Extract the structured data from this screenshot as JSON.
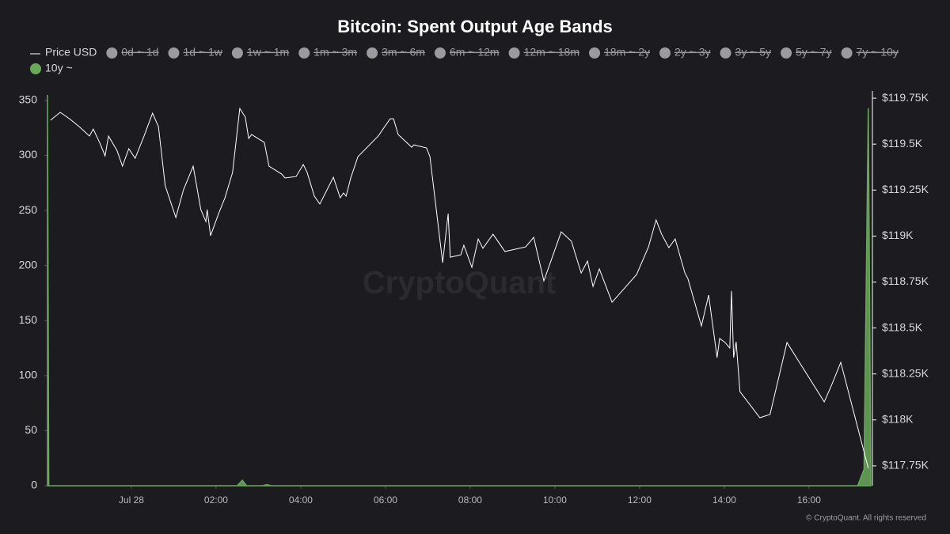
{
  "chart_data": {
    "type": "line_area",
    "title": "Bitcoin: Spent Output Age Bands",
    "watermark": "CryptoQuant",
    "footer": "© CryptoQuant. All rights reserved",
    "hidden_series": [
      "0d ~ 1d",
      "1d ~ 1w",
      "1w ~ 1m",
      "1m ~ 3m",
      "3m ~ 6m",
      "6m ~ 12m",
      "12m ~ 18m",
      "18m ~ 2y",
      "2y ~ 3y",
      "3y ~ 5y",
      "5y ~ 7y",
      "7y ~ 10y"
    ],
    "hidden_color": "#9a9aa0",
    "xlim": [
      -1.98,
      17.46
    ],
    "xticks": [
      {
        "value": 0,
        "label": "Jul 28"
      },
      {
        "value": 2,
        "label": "02:00"
      },
      {
        "value": 4,
        "label": "04:00"
      },
      {
        "value": 6,
        "label": "06:00"
      },
      {
        "value": 8,
        "label": "08:00"
      },
      {
        "value": 10,
        "label": "10:00"
      },
      {
        "value": 12,
        "label": "12:00"
      },
      {
        "value": 14,
        "label": "14:00"
      },
      {
        "value": 16,
        "label": "16:00"
      }
    ],
    "ylim": [
      0,
      358.6
    ],
    "yticks": [
      0,
      50,
      100,
      150,
      200,
      250,
      300,
      350
    ],
    "y2lim": [
      117642,
      119789
    ],
    "y2ticks": [
      {
        "value": 117750,
        "label": "$117.75K"
      },
      {
        "value": 118000,
        "label": "$118K"
      },
      {
        "value": 118250,
        "label": "$118.25K"
      },
      {
        "value": 118500,
        "label": "$118.5K"
      },
      {
        "value": 118750,
        "label": "$118.75K"
      },
      {
        "value": 119000,
        "label": "$119K"
      },
      {
        "value": 119250,
        "label": "$119.25K"
      },
      {
        "value": 119500,
        "label": "$119.5K"
      },
      {
        "value": 119750,
        "label": "$119.75K"
      }
    ],
    "series": [
      {
        "name": "Price USD",
        "color": "#ffffff",
        "axis": "y2",
        "kind": "line",
        "x": [
          -1.91,
          -1.68,
          -1.46,
          -1.23,
          -0.99,
          -0.9,
          -0.75,
          -0.62,
          -0.54,
          -0.34,
          -0.21,
          -0.06,
          0.09,
          0.3,
          0.5,
          0.64,
          0.8,
          1.05,
          1.23,
          1.46,
          1.64,
          1.76,
          1.79,
          1.87,
          2.06,
          2.21,
          2.39,
          2.56,
          2.69,
          2.77,
          2.84,
          3.14,
          3.25,
          3.55,
          3.63,
          3.89,
          4.06,
          4.15,
          4.32,
          4.45,
          4.77,
          4.93,
          5.01,
          5.07,
          5.18,
          5.35,
          5.83,
          6.11,
          6.19,
          6.3,
          6.62,
          6.67,
          6.97,
          7.05,
          7.35,
          7.48,
          7.53,
          7.78,
          7.85,
          8.04,
          8.19,
          8.3,
          8.54,
          8.82,
          9.31,
          9.5,
          9.74,
          10.15,
          10.39,
          10.62,
          10.77,
          10.9,
          11.05,
          11.35,
          11.93,
          12.21,
          12.39,
          12.52,
          12.69,
          12.84,
          13.07,
          13.14,
          13.46,
          13.63,
          13.83,
          13.89,
          14.02,
          14.13,
          14.17,
          14.22,
          14.28,
          14.37,
          14.84,
          15.08,
          15.48,
          16.36,
          16.54,
          16.75,
          17.4
        ],
        "values": [
          119630,
          119673,
          119638,
          119595,
          119544,
          119582,
          119509,
          119436,
          119544,
          119466,
          119380,
          119475,
          119423,
          119544,
          119668,
          119595,
          119273,
          119101,
          119251,
          119380,
          119144,
          119079,
          119144,
          119002,
          119122,
          119208,
          119346,
          119694,
          119647,
          119531,
          119552,
          119509,
          119380,
          119337,
          119316,
          119324,
          119389,
          119346,
          119217,
          119174,
          119320,
          119208,
          119234,
          119217,
          119316,
          119432,
          119544,
          119638,
          119638,
          119552,
          119483,
          119496,
          119479,
          119432,
          118855,
          119122,
          118885,
          118898,
          118950,
          118830,
          118984,
          118933,
          119010,
          118916,
          118941,
          118993,
          118756,
          119023,
          118972,
          118799,
          118864,
          118726,
          118821,
          118640,
          118791,
          118941,
          119088,
          119010,
          118937,
          118984,
          118799,
          118769,
          118511,
          118679,
          118339,
          118443,
          118421,
          118391,
          118701,
          118339,
          118425,
          118154,
          118012,
          118030,
          118421,
          118098,
          118193,
          118313,
          117737
        ]
      },
      {
        "name": "10y ~",
        "color": "#6aa85c",
        "axis": "y",
        "kind": "area",
        "x": [
          -1.98,
          -1.95,
          2.5,
          2.62,
          2.72,
          3.1,
          3.2,
          3.3,
          17.15,
          17.3,
          17.4,
          17.46
        ],
        "values": [
          355,
          0,
          0,
          5,
          0,
          0,
          1,
          0,
          0,
          15,
          343,
          0
        ]
      }
    ]
  }
}
